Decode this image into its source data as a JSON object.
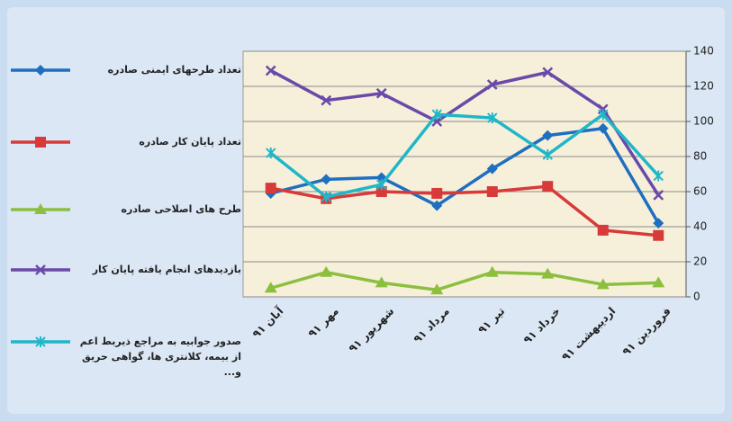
{
  "chart_data": {
    "type": "line",
    "categories": [
      "آبان ۹۱",
      "مهر ۹۱",
      "شهریور ۹۱",
      "مرداد ۹۱",
      "تیر ۹۱",
      "خرداد ۹۱",
      "اردیبهشت ۹۱",
      "فروردین ۹۱"
    ],
    "series": [
      {
        "name": "تعداد طرحهای ایمنی صادره",
        "color": "#1f6fc0",
        "marker": "diamond",
        "values": [
          59,
          67,
          68,
          52,
          73,
          92,
          96,
          42
        ]
      },
      {
        "name": "تعداد پایان کار صادره",
        "color": "#d83a3a",
        "marker": "square",
        "values": [
          62,
          56,
          60,
          59,
          60,
          63,
          38,
          35
        ]
      },
      {
        "name": "طرح های اصلاحی صادره",
        "color": "#8cbf3f",
        "marker": "triangle",
        "values": [
          5,
          14,
          8,
          4,
          14,
          13,
          7,
          8
        ]
      },
      {
        "name": "بازدیدهای انجام یافته پایان کار",
        "color": "#6a4aa8",
        "marker": "x",
        "values": [
          129,
          112,
          116,
          100,
          121,
          128,
          107,
          58
        ]
      },
      {
        "name": "صدور جوابیه به مراجع ذیربط اعم از بیمه، کلانتری ها، گواهی حریق و...",
        "color": "#20b6c8",
        "marker": "star",
        "values": [
          82,
          57,
          64,
          104,
          102,
          81,
          104,
          69
        ]
      }
    ],
    "ylim": [
      0,
      140
    ],
    "yticks": [
      0,
      20,
      40,
      60,
      80,
      100,
      120,
      140
    ],
    "grid": true
  }
}
